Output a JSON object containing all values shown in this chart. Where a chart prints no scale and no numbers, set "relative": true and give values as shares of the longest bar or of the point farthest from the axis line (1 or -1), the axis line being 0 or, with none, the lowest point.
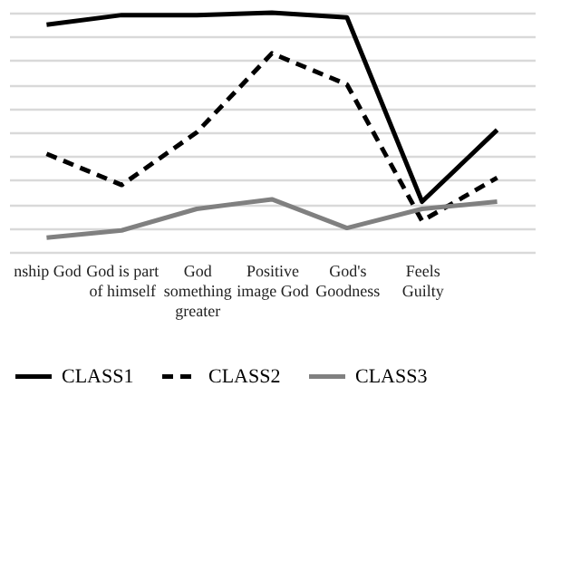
{
  "chart_data": {
    "type": "line",
    "relative": true,
    "grid": "y",
    "legend": "bottom",
    "marker": "none",
    "categories": [
      "nship God",
      "God is part of himself",
      "God something greater",
      "Positive image God",
      "God's Goodness",
      "Feels Guilty",
      null
    ],
    "series": [
      {
        "name": "CLASS1",
        "color": "#000000",
        "line_style": "solid",
        "values": [
          0.95,
          0.99,
          0.99,
          1.0,
          0.98,
          0.21,
          0.51
        ]
      },
      {
        "name": "CLASS2",
        "color": "#000000",
        "line_style": "dashed",
        "values": [
          0.41,
          0.28,
          0.5,
          0.83,
          0.7,
          0.13,
          0.31
        ]
      },
      {
        "name": "CLASS3",
        "color": "#808080",
        "line_style": "solid",
        "values": [
          0.06,
          0.09,
          0.18,
          0.22,
          0.1,
          0.18,
          0.21
        ]
      }
    ]
  }
}
